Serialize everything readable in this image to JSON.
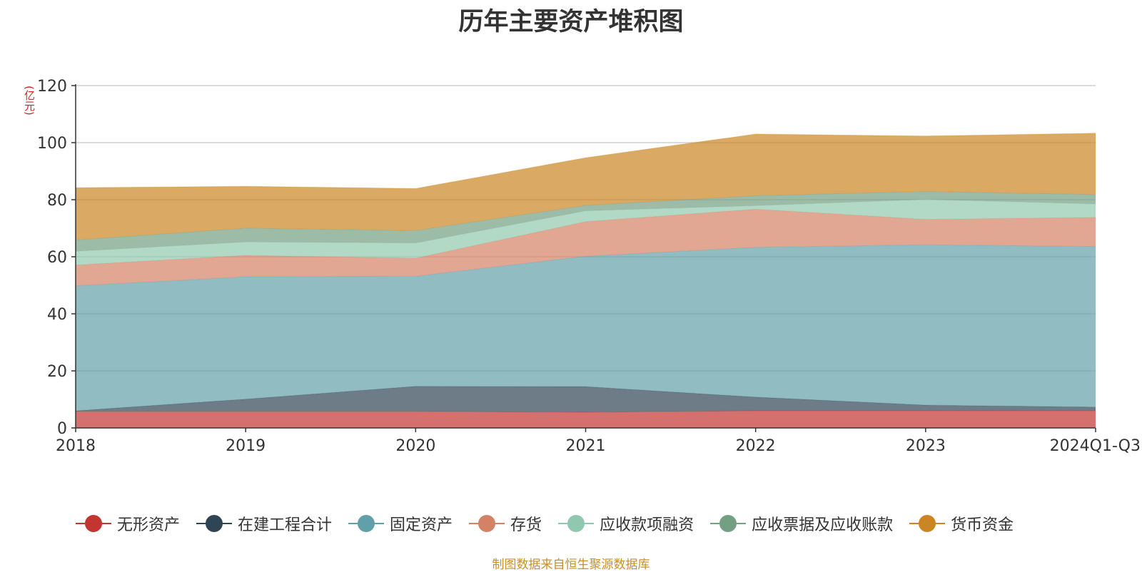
{
  "chart_data": {
    "type": "area",
    "stacked": true,
    "title": "历年主要资产堆积图",
    "unit_label": "(亿元)",
    "categories": [
      "2018",
      "2019",
      "2020",
      "2021",
      "2022",
      "2023",
      "2024Q1-Q3"
    ],
    "ylim": [
      0,
      120
    ],
    "yticks": [
      0,
      20,
      40,
      60,
      80,
      100,
      120
    ],
    "grid": true,
    "legend_position": "bottom",
    "series": [
      {
        "name": "无形资产",
        "color": "#c23531",
        "values": [
          5.8,
          5.8,
          5.8,
          5.5,
          6.0,
          6.0,
          6.0
        ]
      },
      {
        "name": "在建工程合计",
        "color": "#2f4554",
        "values": [
          0.2,
          4.3,
          8.8,
          9.0,
          4.8,
          2.0,
          1.3
        ]
      },
      {
        "name": "固定资产",
        "color": "#61a0a8",
        "values": [
          43.8,
          42.9,
          38.6,
          45.7,
          52.5,
          56.2,
          56.3
        ]
      },
      {
        "name": "存货",
        "color": "#d48265",
        "values": [
          7.3,
          7.5,
          6.3,
          12.1,
          13.4,
          8.9,
          10.2
        ]
      },
      {
        "name": "应收款项融资",
        "color": "#91c7ae",
        "values": [
          4.8,
          4.7,
          5.3,
          3.8,
          1.2,
          7.0,
          4.7
        ]
      },
      {
        "name": "应收票据及应收账款",
        "color": "#749f83",
        "values": [
          4.0,
          4.8,
          4.4,
          1.9,
          3.5,
          2.8,
          3.3
        ]
      },
      {
        "name": "货币资金",
        "color": "#ca8622",
        "values": [
          18.3,
          14.7,
          14.7,
          16.7,
          21.6,
          19.4,
          21.5
        ]
      }
    ]
  },
  "source_note": "制图数据来自恒生聚源数据库"
}
